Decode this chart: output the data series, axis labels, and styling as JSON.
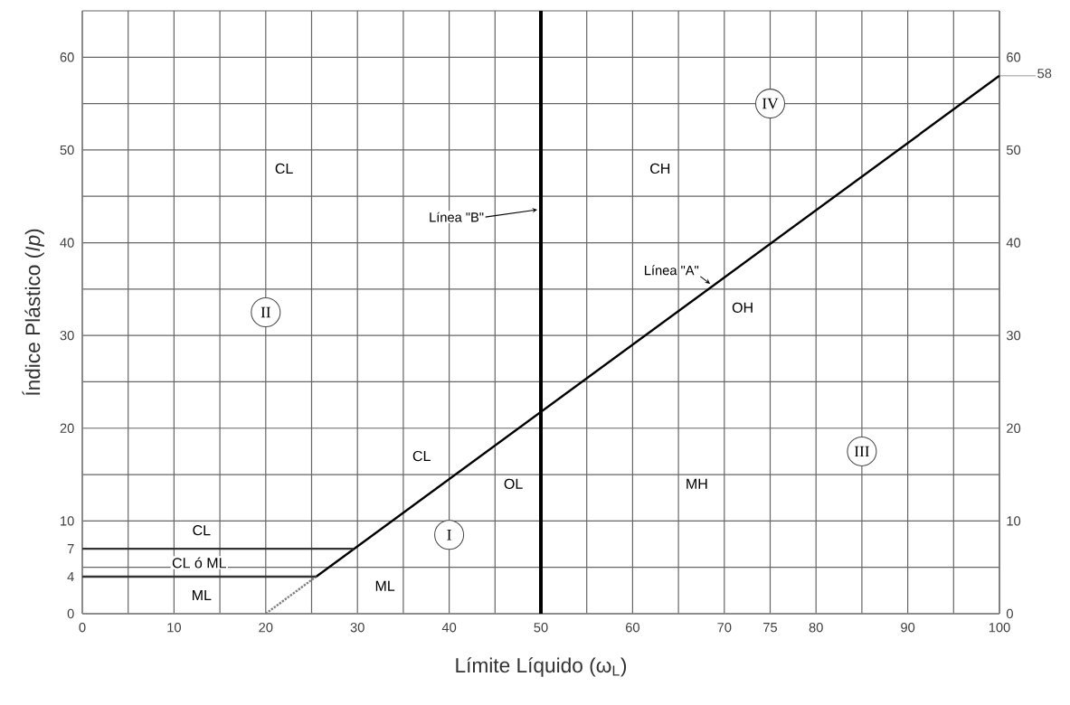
{
  "chart_data": {
    "type": "line",
    "xlabel": "Límite Líquido (ω$_{L}$)",
    "ylabel": "Índice Plástico (*Ip*)",
    "xlim": [
      0,
      100
    ],
    "ylim": [
      0,
      65
    ],
    "xticks": [
      0,
      {
        "value": 5,
        "label": null
      },
      10,
      {
        "value": 15,
        "label": null
      },
      20,
      {
        "value": 25,
        "label": null
      },
      30,
      {
        "value": 35,
        "label": null
      },
      40,
      {
        "value": 45,
        "label": null
      },
      50,
      {
        "value": 55,
        "label": null
      },
      60,
      {
        "value": 65,
        "label": null
      },
      70,
      75,
      80,
      {
        "value": 85,
        "label": null
      },
      90,
      {
        "value": 95,
        "label": null
      },
      100
    ],
    "yticks": [
      0,
      4,
      7,
      10,
      20,
      30,
      40,
      50,
      60
    ],
    "y2lim": [
      0,
      65
    ],
    "y2ticks": [
      0,
      {
        "value": 5,
        "label": null
      },
      10,
      {
        "value": 15,
        "label": null
      },
      20,
      {
        "value": 25,
        "label": null
      },
      30,
      {
        "value": 35,
        "label": null
      },
      40,
      {
        "value": 45,
        "label": null
      },
      50,
      {
        "value": 55,
        "label": null
      },
      60,
      {
        "value": 65,
        "label": null
      }
    ],
    "grid": true,
    "series": [
      {
        "name": "Línea \"A\"",
        "color": "#000000",
        "x": [
          25.5,
          100
        ],
        "values": [
          4,
          58
        ],
        "line_style": "solid"
      },
      {
        "color": "#808080",
        "x": [
          20,
          25.5
        ],
        "values": [
          0,
          4
        ],
        "line_style": "dotted"
      },
      {
        "color": "#333333",
        "x": [
          0,
          29.6
        ],
        "values": [
          7,
          7
        ],
        "line_style": "solid"
      },
      {
        "color": "#333333",
        "x": [
          0,
          25.5
        ],
        "values": [
          4,
          4
        ],
        "line_style": "solid"
      }
    ],
    "ref_lines": [
      {
        "axis": "x",
        "value": 50,
        "label": "Línea \"B\"",
        "color": "#000000"
      }
    ],
    "annotations": [
      {
        "text": "CL",
        "x": 22,
        "y": 48
      },
      {
        "text": "CH",
        "x": 63,
        "y": 48
      },
      {
        "text": "OH",
        "x": 72,
        "y": 33
      },
      {
        "text": "CL",
        "x": 37,
        "y": 17
      },
      {
        "text": "OL",
        "x": 47,
        "y": 14
      },
      {
        "text": "MH",
        "x": 67,
        "y": 14
      },
      {
        "text": "CL",
        "x": 13,
        "y": 9
      },
      "CL  ó  ML",
      {
        "text": "ML",
        "x": 13,
        "y": 2
      },
      {
        "text": "ML",
        "x": 33,
        "y": 3
      },
      {
        "text": "I",
        "x": 40,
        "y": 8.5
      },
      {
        "text": "II",
        "x": 20,
        "y": 32.5
      },
      {
        "text": "III",
        "x": 85,
        "y": 17.5
      },
      {
        "text": "IV",
        "x": 75,
        "y": 55
      },
      {
        "text": "58",
        "x": 100,
        "y": 58
      }
    ]
  }
}
